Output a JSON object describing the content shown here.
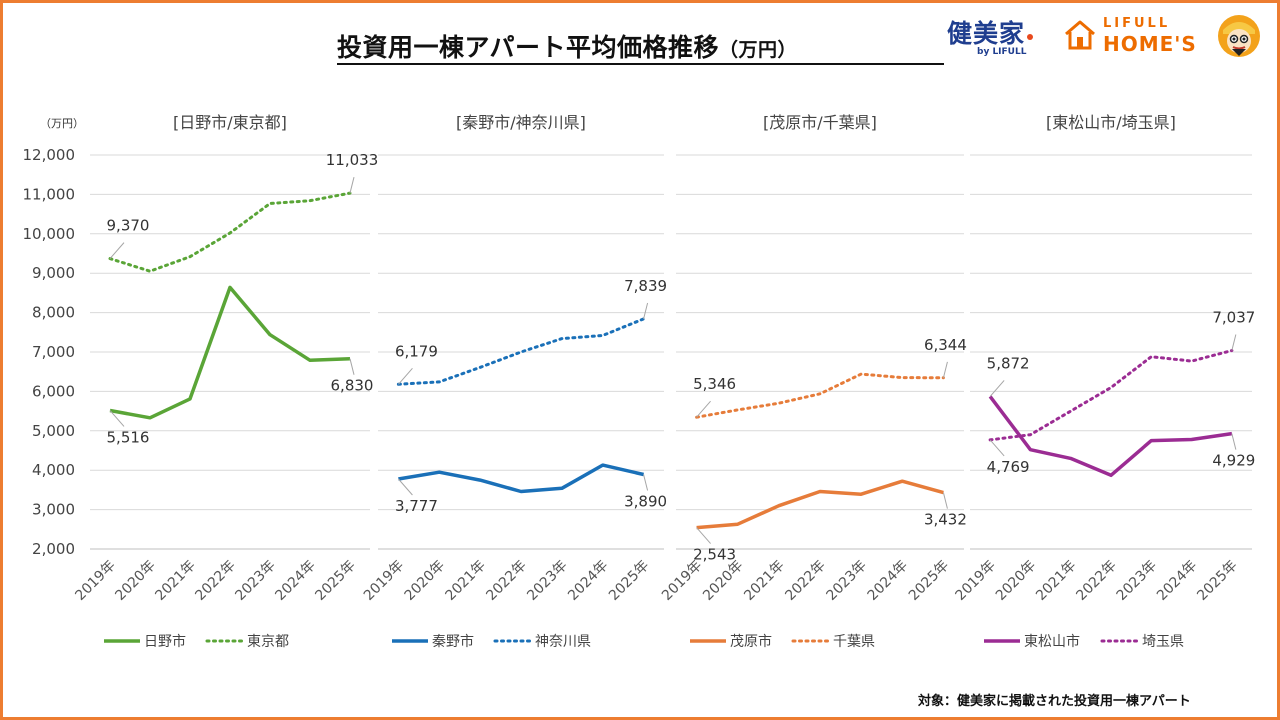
{
  "header": {
    "title": "投資用一棟アパート平均価格推移",
    "title_unit": "（万円）"
  },
  "logos": {
    "kenbiya": "健美家",
    "kenbiya_sub": "by LIFULL",
    "lifull_top": "LIFULL",
    "lifull_bottom": "HOME'S",
    "mascot": "mascot-icon"
  },
  "footnote": "対象：健美家に掲載された投資用一棟アパート",
  "chart_data": {
    "type": "line",
    "y_unit": "（万円）",
    "ylim": [
      2000,
      12000
    ],
    "yticks": [
      "12,000",
      "11,000",
      "10,000",
      "9,000",
      "8,000",
      "7,000",
      "6,000",
      "5,000",
      "4,000",
      "3,000",
      "2,000"
    ],
    "grid": true,
    "legend": "bottom",
    "categories": [
      "2019年",
      "2020年",
      "2021年",
      "2022年",
      "2023年",
      "2024年",
      "2025年"
    ],
    "panels": [
      {
        "title": "[日野市/東京都]",
        "color": "#5AA537",
        "series": [
          {
            "name": "日野市",
            "style": "solid",
            "values": [
              5516,
              5330,
              5810,
              8640,
              7440,
              6790,
              6830
            ],
            "labels": {
              "0": "5,516",
              "6": "6,830"
            }
          },
          {
            "name": "東京都",
            "style": "dotted",
            "values": [
              9370,
              9050,
              9420,
              10020,
              10770,
              10840,
              11033
            ],
            "labels": {
              "0": "9,370",
              "6": "11,033"
            }
          }
        ]
      },
      {
        "title": "[秦野市/神奈川県]",
        "color": "#1A70B8",
        "series": [
          {
            "name": "秦野市",
            "style": "solid",
            "values": [
              3777,
              3950,
              3750,
              3460,
              3540,
              4130,
              3890
            ],
            "labels": {
              "0": "3,777",
              "6": "3,890"
            }
          },
          {
            "name": "神奈川県",
            "style": "dotted",
            "values": [
              6179,
              6240,
              6610,
              7000,
              7340,
              7420,
              7839
            ],
            "labels": {
              "0": "6,179",
              "6": "7,839"
            }
          }
        ]
      },
      {
        "title": "[茂原市/千葉県]",
        "color": "#E67C3A",
        "series": [
          {
            "name": "茂原市",
            "style": "solid",
            "values": [
              2543,
              2630,
              3100,
              3460,
              3390,
              3720,
              3432
            ],
            "labels": {
              "0": "2,543",
              "6": "3,432"
            }
          },
          {
            "name": "千葉県",
            "style": "dotted",
            "values": [
              5346,
              5530,
              5700,
              5940,
              6440,
              6350,
              6344
            ],
            "labels": {
              "0": "5,346",
              "6": "6,344"
            }
          }
        ]
      },
      {
        "title": "[東松山市/埼玉県]",
        "color": "#9B2C93",
        "series": [
          {
            "name": "東松山市",
            "style": "solid",
            "values": [
              5872,
              4520,
              4300,
              3870,
              4750,
              4780,
              4929
            ],
            "labels": {
              "0": "5,872",
              "6": "4,929"
            }
          },
          {
            "name": "埼玉県",
            "style": "dotted",
            "values": [
              4769,
              4900,
              5500,
              6100,
              6880,
              6770,
              7037
            ],
            "labels": {
              "0": "4,769",
              "6": "7,037"
            }
          }
        ]
      }
    ]
  }
}
